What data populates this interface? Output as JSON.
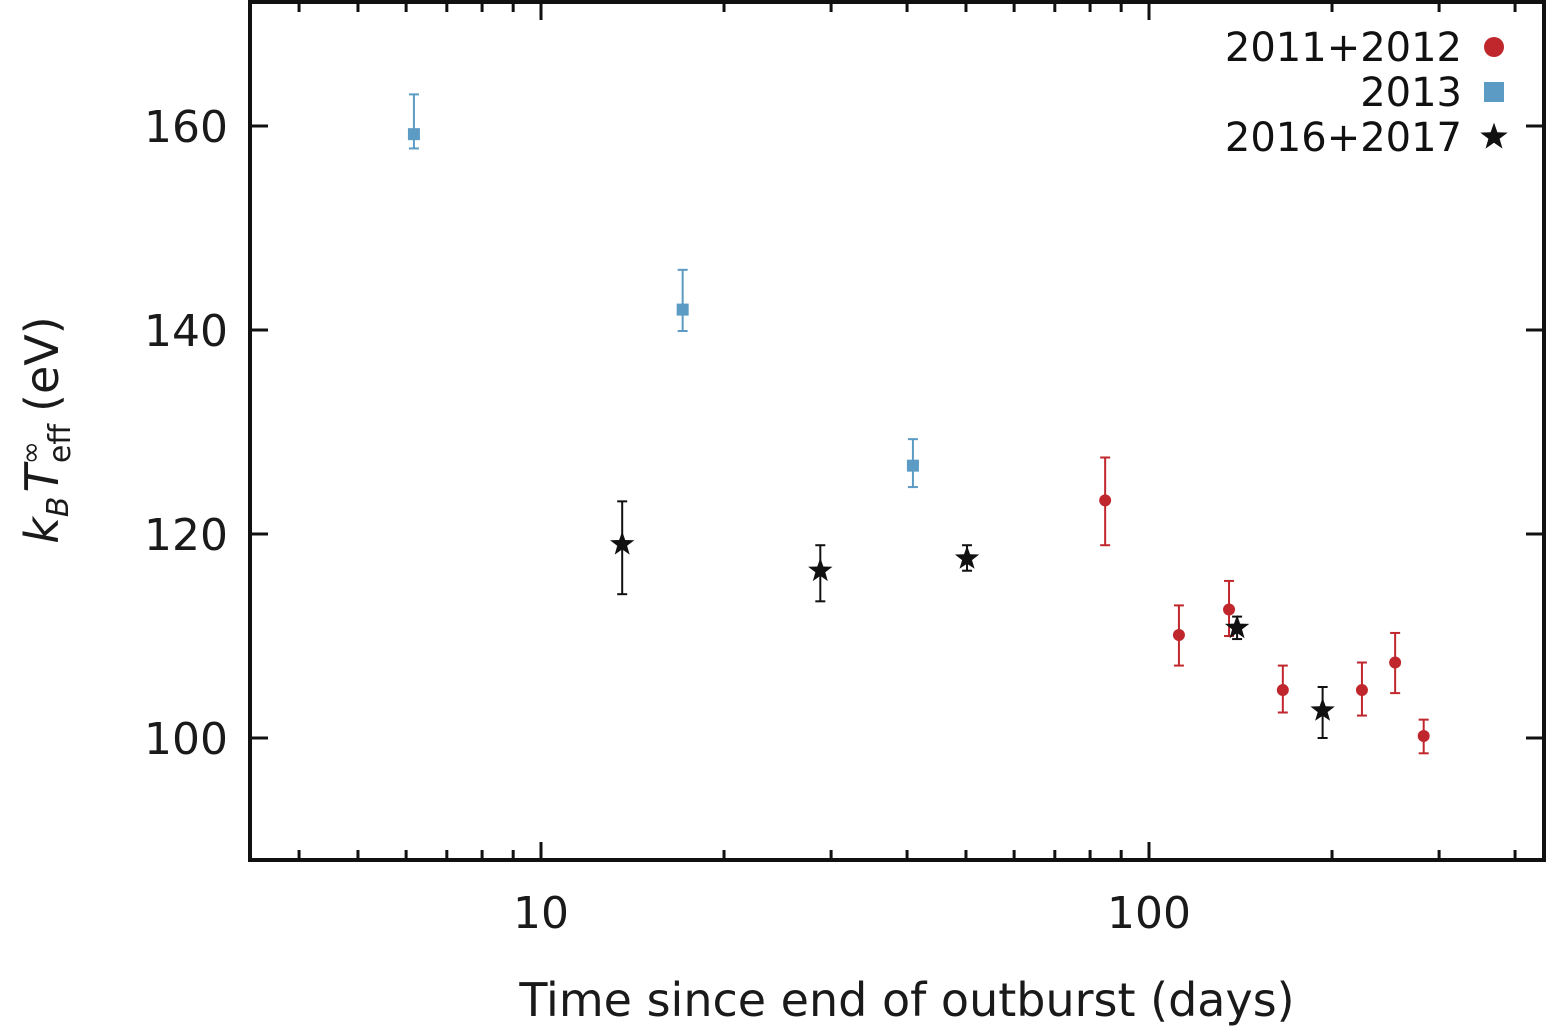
{
  "chart_data": {
    "type": "scatter",
    "title": "",
    "xlabel": "Time since end of outburst (days)",
    "ylabel": "k_B T_eff^∞ (eV)",
    "ylabel_parts": {
      "main": "k",
      "sub1": "B",
      "T": "T",
      "sup": "∞",
      "sub2": "eff",
      "unit": "(eV)"
    },
    "xscale": "log",
    "xlim": [
      3.3,
      450
    ],
    "ylim": [
      88,
      172
    ],
    "xticks": [
      10,
      100
    ],
    "xtick_labels": [
      "10",
      "100"
    ],
    "yticks": [
      100,
      120,
      140,
      160
    ],
    "ytick_labels": [
      "100",
      "120",
      "140",
      "160"
    ],
    "grid": false,
    "legend_position": "upper right",
    "series": [
      {
        "name": "2011+2012",
        "marker": "circle",
        "color": "#c0272d",
        "points": [
          {
            "x": 84.7,
            "y": 123.3,
            "y_hi": 127.5,
            "y_lo": 118.9
          },
          {
            "x": 112,
            "y": 110.1,
            "y_hi": 113.0,
            "y_lo": 107.1
          },
          {
            "x": 135.4,
            "y": 112.6,
            "y_hi": 115.4,
            "y_lo": 110.0
          },
          {
            "x": 166,
            "y": 104.7,
            "y_hi": 107.1,
            "y_lo": 102.5
          },
          {
            "x": 224,
            "y": 104.7,
            "y_hi": 107.4,
            "y_lo": 102.2
          },
          {
            "x": 254,
            "y": 107.4,
            "y_hi": 110.3,
            "y_lo": 104.4
          },
          {
            "x": 283,
            "y": 100.2,
            "y_hi": 101.8,
            "y_lo": 98.5
          }
        ]
      },
      {
        "name": "2013",
        "marker": "square",
        "color": "#5b9bc4",
        "points": [
          {
            "x": 6.18,
            "y": 159.2,
            "y_hi": 163.1,
            "y_lo": 157.8
          },
          {
            "x": 17.1,
            "y": 142.0,
            "y_hi": 145.9,
            "y_lo": 139.9
          },
          {
            "x": 40.9,
            "y": 126.7,
            "y_hi": 129.3,
            "y_lo": 124.6
          }
        ]
      },
      {
        "name": "2016+2017",
        "marker": "star",
        "color": "#111111",
        "points": [
          {
            "x": 13.6,
            "y": 119.0,
            "y_hi": 123.2,
            "y_lo": 114.1
          },
          {
            "x": 28.8,
            "y": 116.4,
            "y_hi": 118.9,
            "y_lo": 113.4
          },
          {
            "x": 50.2,
            "y": 117.6,
            "y_hi": 118.9,
            "y_lo": 116.4
          },
          {
            "x": 139.6,
            "y": 110.8,
            "y_hi": 111.9,
            "y_lo": 109.7
          },
          {
            "x": 193,
            "y": 102.7,
            "y_hi": 105.0,
            "y_lo": 100.0
          }
        ]
      }
    ]
  }
}
